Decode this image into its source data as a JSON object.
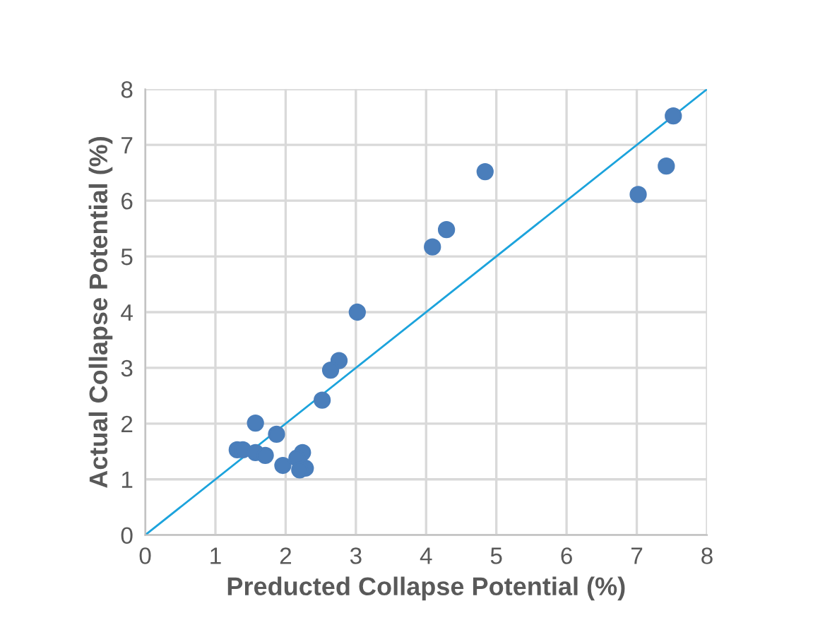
{
  "chart_data": {
    "type": "scatter",
    "xlabel": "Preducted Collapse Potential (%)",
    "ylabel": "Actual Collapse Potential (%)",
    "xlim": [
      0,
      8
    ],
    "ylim": [
      0,
      8
    ],
    "xticks": [
      0,
      1,
      2,
      3,
      4,
      5,
      6,
      7,
      8
    ],
    "yticks": [
      0,
      1,
      2,
      3,
      4,
      5,
      6,
      7,
      8
    ],
    "grid": true,
    "series": [
      {
        "marker": "circle",
        "color": "#4a7ebb",
        "x": [
          7.52,
          7.42,
          7.02,
          4.84,
          4.29,
          4.09,
          3.02,
          2.76,
          2.64,
          2.52,
          1.57,
          1.87,
          1.31,
          1.39,
          1.57,
          1.71,
          2.24,
          2.16,
          1.96,
          2.28,
          2.2
        ],
        "values": [
          7.52,
          6.62,
          6.11,
          6.52,
          5.48,
          5.17,
          4.0,
          3.13,
          2.96,
          2.42,
          2.01,
          1.81,
          1.53,
          1.53,
          1.48,
          1.43,
          1.48,
          1.38,
          1.25,
          1.2,
          1.17
        ]
      },
      {
        "type": "line",
        "color": "#1ca3dc",
        "x": [
          0,
          8
        ],
        "values": [
          0,
          8
        ]
      }
    ]
  }
}
